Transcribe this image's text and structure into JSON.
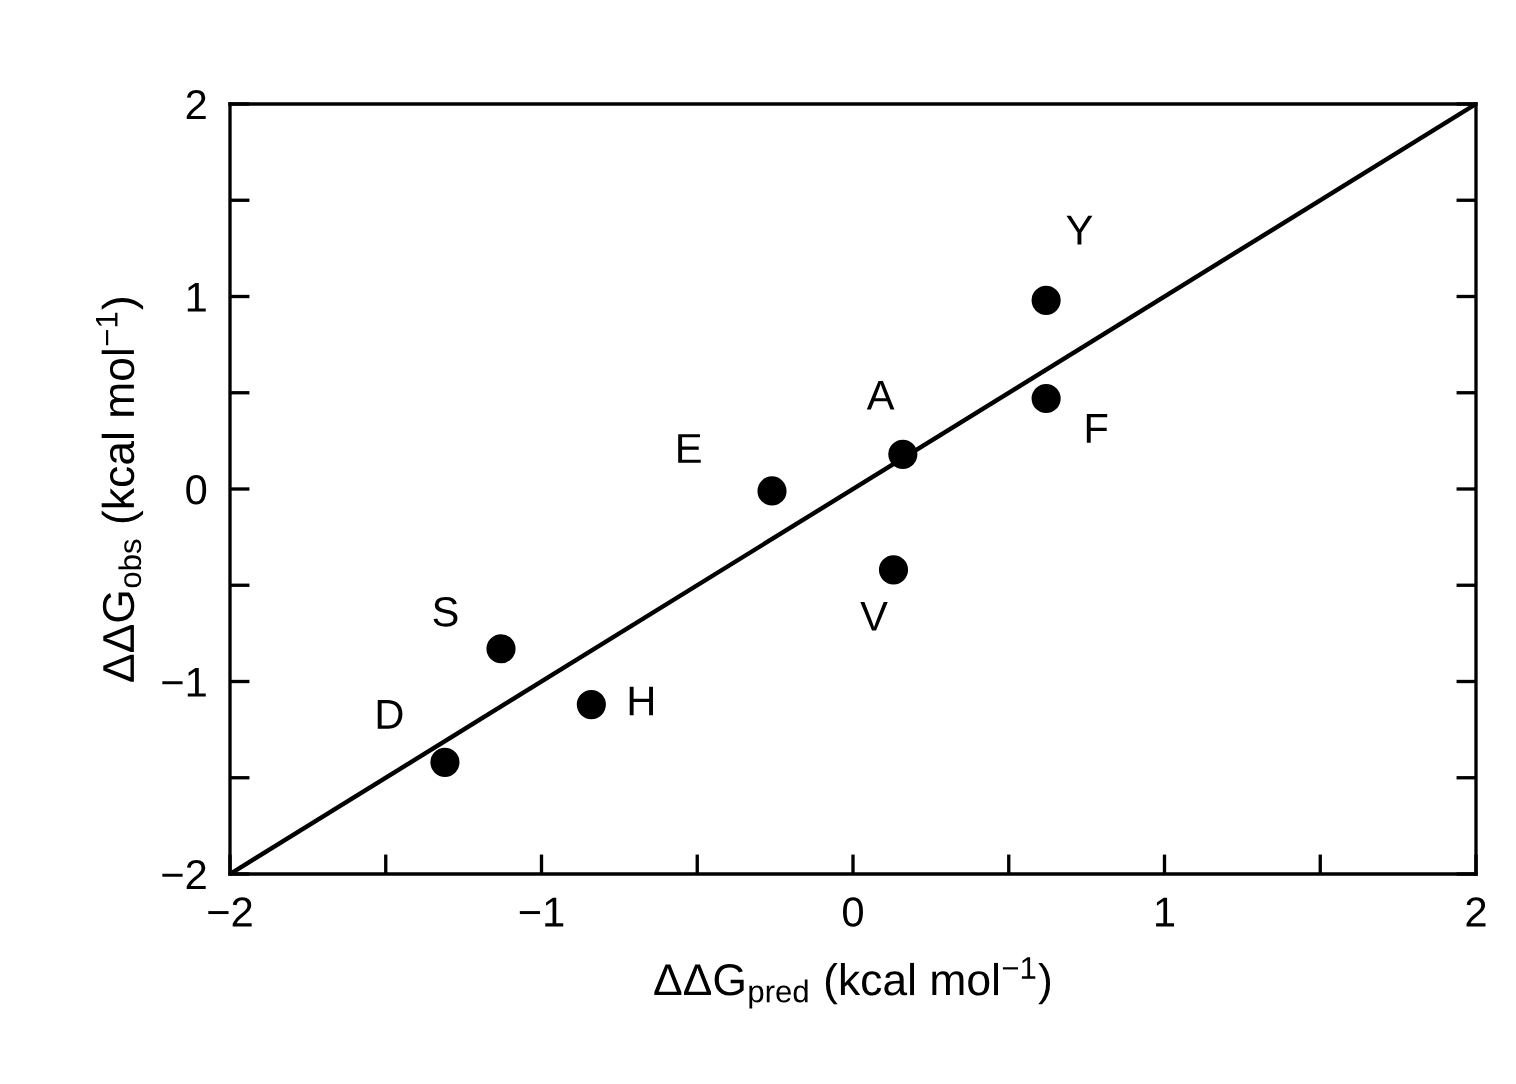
{
  "chart_data": {
    "type": "scatter",
    "xlabel": "ΔΔG$_{pred}$ (kcal mol$^{−1}$)",
    "ylabel": "ΔΔG$_{obs}$ (kcal mol$^{−1}$)",
    "x": [
      0.62,
      0.62,
      0.16,
      -0.26,
      0.13,
      -1.13,
      -0.84,
      -1.31
    ],
    "series": [
      {
        "color": "#000000",
        "values": [
          0.98,
          0.47,
          0.18,
          -0.01,
          -0.42,
          -0.83,
          -1.12,
          -1.42
        ],
        "marker": "circle",
        "value_labels": [
          "Y",
          "F",
          "A",
          "E",
          "V",
          "S",
          "H",
          "D"
        ]
      },
      {
        "type": "line",
        "color": "#000000",
        "x": [
          -2,
          2
        ],
        "values": [
          -2,
          2
        ],
        "marker": "none",
        "line_style": "solid"
      }
    ],
    "xlim": [
      -2,
      2
    ],
    "ylim": [
      -2,
      2
    ],
    "xticks": [
      {
        "value": -2,
        "label": "−2"
      },
      {
        "value": -1.5,
        "label": null
      },
      {
        "value": -1,
        "label": "−1"
      },
      {
        "value": -0.5,
        "label": null
      },
      0,
      {
        "value": 0.5,
        "label": null
      },
      1,
      {
        "value": 1.5,
        "label": null
      },
      2
    ],
    "yticks": [
      {
        "value": -2,
        "label": "−2"
      },
      {
        "value": -1.5,
        "label": null
      },
      {
        "value": -1,
        "label": "−1"
      },
      {
        "value": -0.5,
        "label": null
      },
      0,
      {
        "value": 0.5,
        "label": null
      },
      1,
      {
        "value": 1.5,
        "label": null
      },
      2
    ],
    "grid": false,
    "legend": false
  }
}
